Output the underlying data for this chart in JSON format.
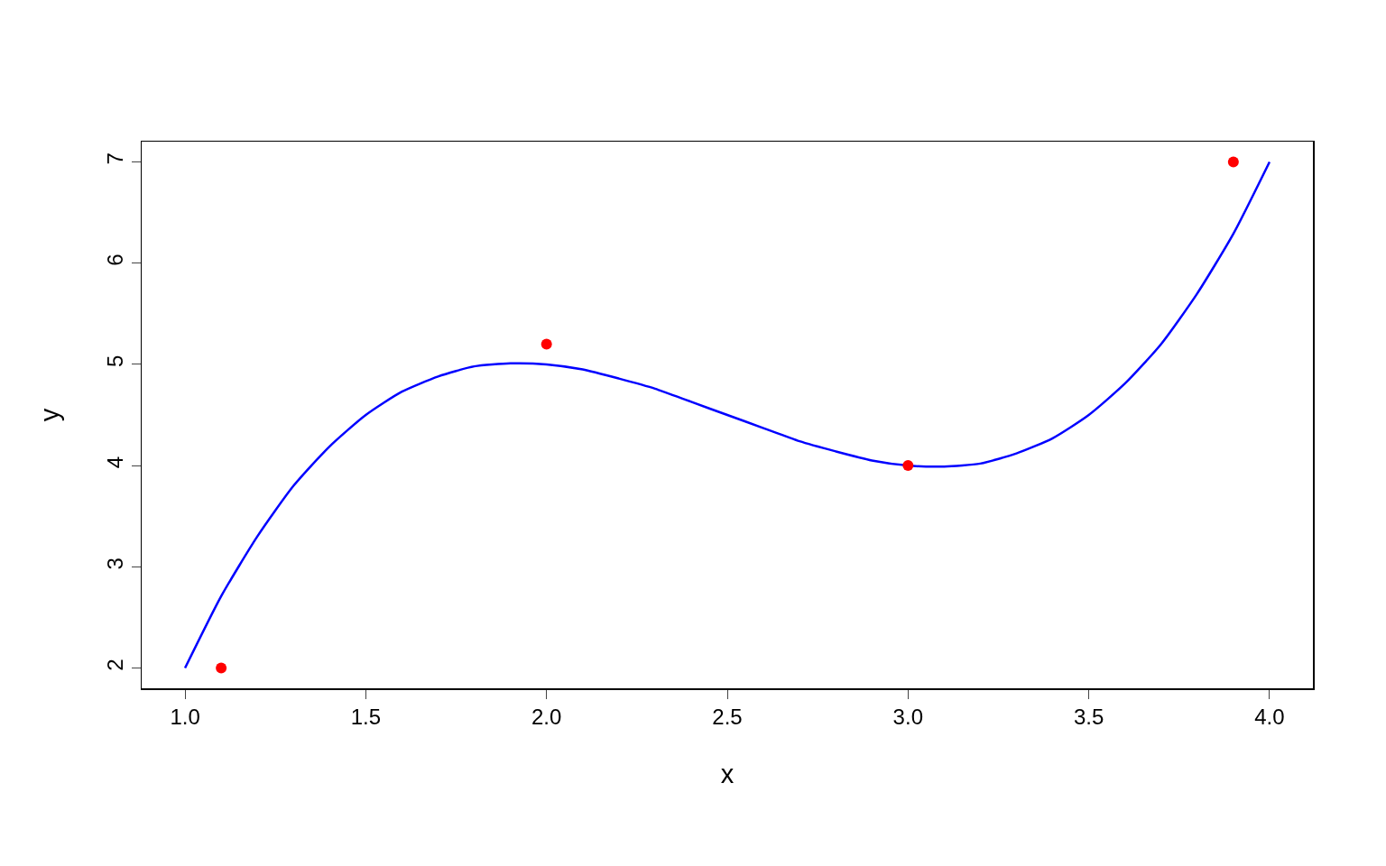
{
  "chart_data": {
    "type": "scatter",
    "xlabel": "x",
    "ylabel": "y",
    "xlim": [
      0.88,
      4.12
    ],
    "ylim": [
      1.8,
      7.2
    ],
    "xticks": [
      {
        "value": 1,
        "label": "1.0"
      },
      {
        "value": 1.5,
        "label": "1.5"
      },
      {
        "value": 2,
        "label": "2.0"
      },
      {
        "value": 2.5,
        "label": "2.5"
      },
      {
        "value": 3,
        "label": "3.0"
      },
      {
        "value": 3.5,
        "label": "3.5"
      },
      {
        "value": 4,
        "label": "4.0"
      }
    ],
    "yticks": [
      2,
      3,
      4,
      5,
      6,
      7
    ],
    "grid": false,
    "legend": false,
    "series": [
      {
        "type": "line",
        "color": "#0000ff",
        "marker": "none",
        "line_style": "solid",
        "x": [
          1.0,
          1.1,
          1.2,
          1.3,
          1.4,
          1.5,
          1.6,
          1.7,
          1.8,
          1.9,
          2.0,
          2.1,
          2.2,
          2.3,
          2.4,
          2.5,
          2.6,
          2.7,
          2.8,
          2.9,
          3.0,
          3.1,
          3.2,
          3.3,
          3.4,
          3.5,
          3.6,
          3.7,
          3.8,
          3.9,
          4.0
        ],
        "values": [
          2.0,
          2.71,
          3.3,
          3.8,
          4.19,
          4.5,
          4.73,
          4.88,
          4.98,
          5.01,
          5.0,
          4.95,
          4.86,
          4.76,
          4.63,
          4.5,
          4.37,
          4.24,
          4.14,
          4.05,
          4.0,
          3.99,
          4.02,
          4.12,
          4.27,
          4.5,
          4.81,
          5.2,
          5.7,
          6.29,
          7.0
        ]
      },
      {
        "color": "#ff0000",
        "marker": "circle",
        "x": [
          1.1,
          2.0,
          3.0,
          3.9
        ],
        "values": [
          2.0,
          5.2,
          4.0,
          7.0
        ]
      }
    ]
  }
}
